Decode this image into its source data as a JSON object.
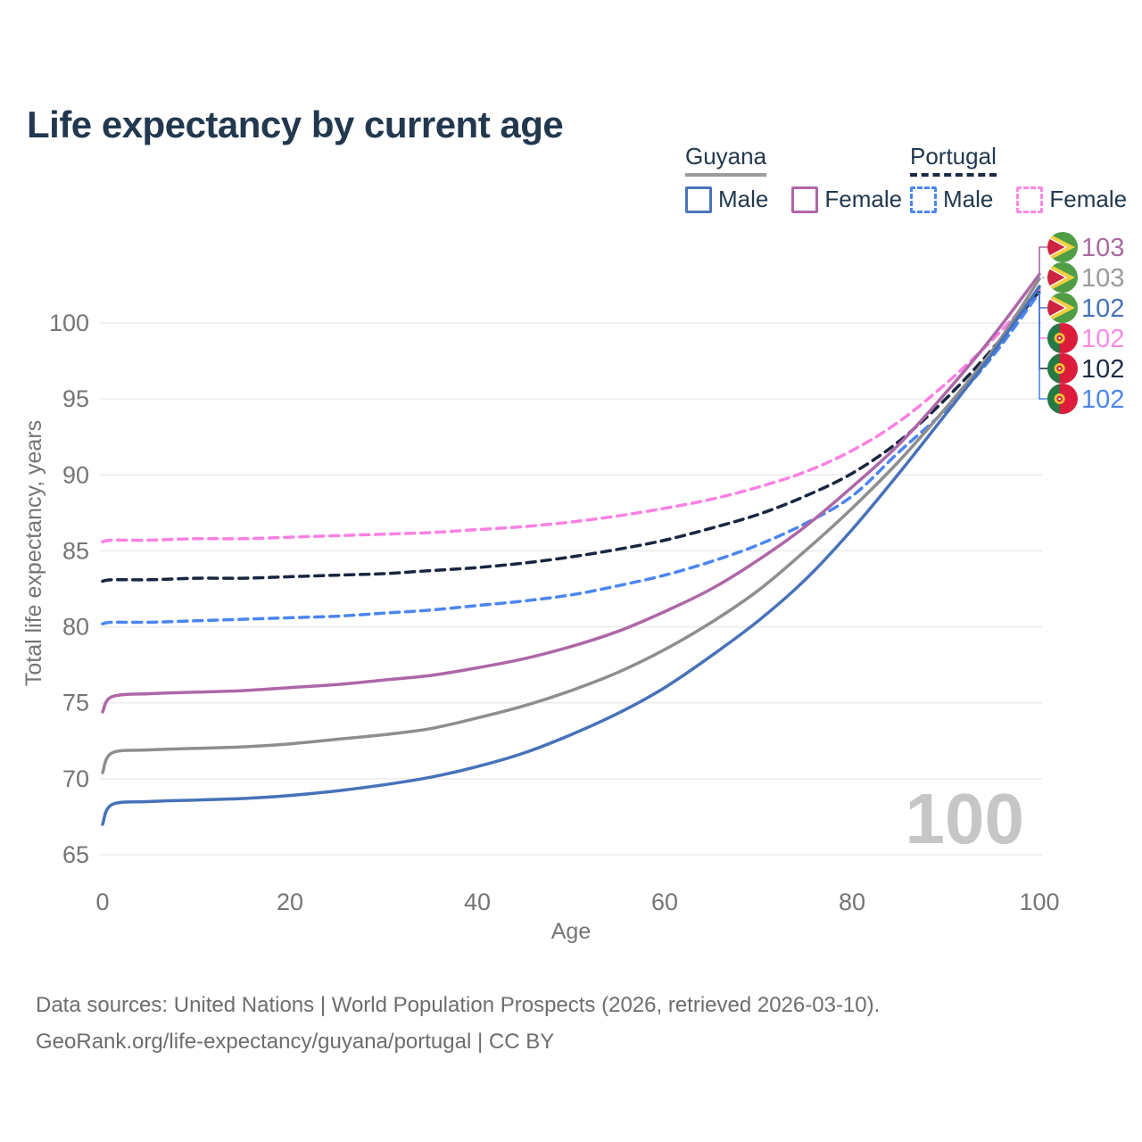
{
  "header": {
    "title": "Life expectancy by current age"
  },
  "legend": {
    "groups": [
      {
        "id": "guyana",
        "label": "Guyana",
        "line_style": "solid",
        "line_color": "#9b9b9b",
        "items": [
          {
            "label": "Male",
            "swatch_color": "#4a74ba",
            "swatch_style": "solid"
          },
          {
            "label": "Female",
            "swatch_color": "#b265a9",
            "swatch_style": "solid"
          }
        ]
      },
      {
        "id": "portugal",
        "label": "Portugal",
        "line_style": "dashed",
        "line_color": "#1b2b45",
        "items": [
          {
            "label": "Male",
            "swatch_color": "#4c86ee",
            "swatch_style": "dashed"
          },
          {
            "label": "Female",
            "swatch_color": "#fb8ae4",
            "swatch_style": "dashed"
          }
        ]
      }
    ]
  },
  "chart_data": {
    "type": "line",
    "title": "Life expectancy by current age",
    "xlabel": "Age",
    "ylabel": "Total life expectancy, years",
    "xlim": [
      0,
      100
    ],
    "ylim": [
      65,
      104
    ],
    "x_ticks": [
      0,
      20,
      40,
      60,
      80,
      100
    ],
    "y_ticks": [
      65,
      70,
      75,
      80,
      85,
      90,
      95,
      100
    ],
    "grid": "horizontal-only",
    "legend_position": "top-right",
    "hover_age_watermark": "100",
    "watermark_color": "#c6c6c6",
    "grid_color": "#ebebeb",
    "tick_color": "#757575",
    "ages": [
      0,
      1,
      5,
      10,
      15,
      20,
      25,
      30,
      35,
      40,
      45,
      50,
      55,
      60,
      65,
      70,
      75,
      80,
      85,
      90,
      95,
      100
    ],
    "series": [
      {
        "id": "guyana-female",
        "country": "Guyana",
        "sex": "Female",
        "style": "solid",
        "color": "#ad67a7",
        "end_label": "103",
        "end_label_color": "#a76aa0",
        "flag": "guyana",
        "values": [
          74.4,
          75.4,
          75.6,
          75.7,
          75.8,
          76.0,
          76.2,
          76.5,
          76.8,
          77.3,
          77.9,
          78.7,
          79.7,
          81.0,
          82.5,
          84.4,
          86.6,
          89.2,
          92.0,
          95.4,
          99.1,
          103.2
        ]
      },
      {
        "id": "guyana-all",
        "country": "Guyana",
        "sex": "All",
        "style": "solid",
        "color": "#8e8e8e",
        "end_label": "103",
        "end_label_color": "#9a9a9a",
        "flag": "guyana",
        "values": [
          70.4,
          71.7,
          71.9,
          72.0,
          72.1,
          72.3,
          72.6,
          72.9,
          73.3,
          74.0,
          74.8,
          75.8,
          77.0,
          78.5,
          80.3,
          82.4,
          85.0,
          87.8,
          90.9,
          94.4,
          98.2,
          102.9
        ]
      },
      {
        "id": "guyana-male",
        "country": "Guyana",
        "sex": "Male",
        "style": "solid",
        "color": "#4672b9",
        "end_label": "102",
        "end_label_color": "#4673b7",
        "flag": "guyana",
        "values": [
          67.0,
          68.3,
          68.5,
          68.6,
          68.7,
          68.9,
          69.2,
          69.6,
          70.1,
          70.8,
          71.7,
          72.9,
          74.3,
          76.0,
          78.1,
          80.4,
          83.1,
          86.4,
          90.1,
          94.0,
          98.0,
          102.4
        ]
      },
      {
        "id": "portugal-female",
        "country": "Portugal",
        "sex": "Female",
        "style": "dashed",
        "color": "#fb80e3",
        "end_label": "102",
        "end_label_color": "#fb8ae8",
        "flag": "portugal",
        "values": [
          85.6,
          85.7,
          85.7,
          85.8,
          85.8,
          85.9,
          86.0,
          86.1,
          86.2,
          86.4,
          86.6,
          86.9,
          87.3,
          87.8,
          88.4,
          89.2,
          90.2,
          91.6,
          93.5,
          96.0,
          98.9,
          102.2
        ]
      },
      {
        "id": "portugal-all",
        "country": "Portugal",
        "sex": "All",
        "style": "dashed",
        "color": "#19263f",
        "end_label": "102",
        "end_label_color": "#1d2c46",
        "flag": "portugal",
        "values": [
          83.0,
          83.1,
          83.1,
          83.2,
          83.2,
          83.3,
          83.4,
          83.5,
          83.7,
          83.9,
          84.2,
          84.6,
          85.1,
          85.7,
          86.5,
          87.4,
          88.6,
          90.1,
          92.2,
          95.0,
          98.3,
          102.1
        ]
      },
      {
        "id": "portugal-male",
        "country": "Portugal",
        "sex": "Male",
        "style": "dashed",
        "color": "#4b86ef",
        "end_label": "102",
        "end_label_color": "#4b86ef",
        "flag": "portugal",
        "values": [
          80.2,
          80.3,
          80.3,
          80.4,
          80.5,
          80.6,
          80.7,
          80.9,
          81.1,
          81.4,
          81.7,
          82.1,
          82.7,
          83.4,
          84.3,
          85.4,
          86.8,
          88.6,
          91.5,
          94.3,
          97.8,
          102.0
        ]
      }
    ]
  },
  "footer": {
    "line1": "Data sources: United Nations | World Population Prospects (2026, retrieved 2026-03-10).",
    "line2": "GeoRank.org/life-expectancy/guyana/portugal | CC BY"
  }
}
